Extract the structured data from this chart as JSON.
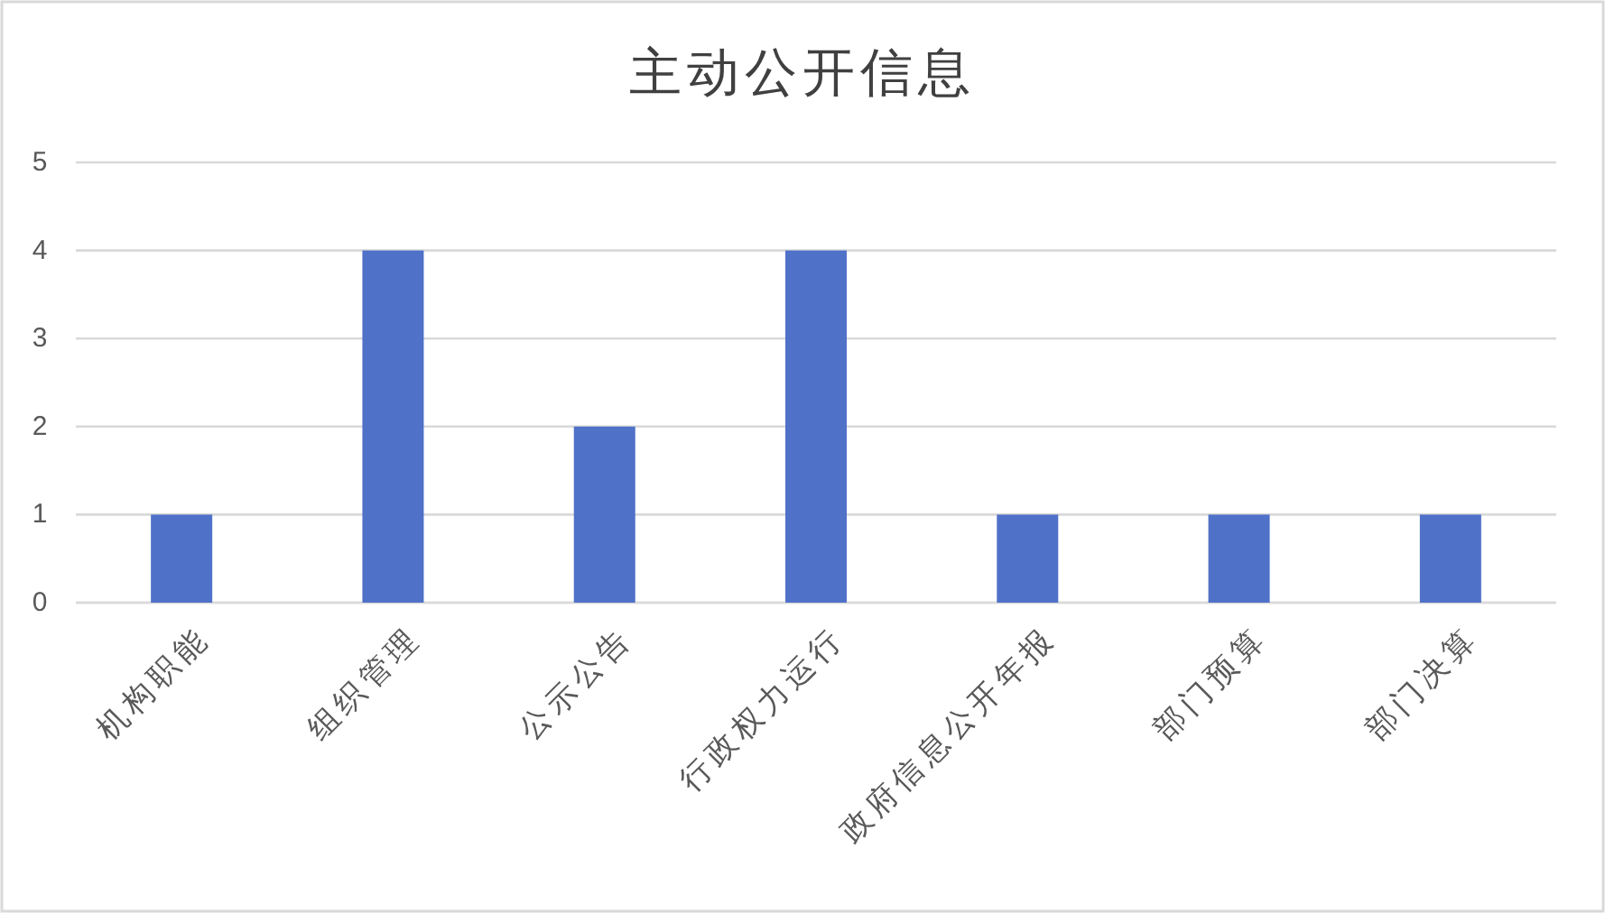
{
  "chart_data": {
    "type": "bar",
    "title": "主动公开信息",
    "categories": [
      "机构职能",
      "组织管理",
      "公示公告",
      "行政权力运行",
      "政府信息公开年报",
      "部门预算",
      "部门决算"
    ],
    "values": [
      1,
      4,
      2,
      4,
      1,
      1,
      1
    ],
    "color": "#4f71c8",
    "ylim": [
      0,
      5
    ],
    "yticks": [
      0,
      1,
      2,
      3,
      4,
      5
    ],
    "grid": "y"
  }
}
